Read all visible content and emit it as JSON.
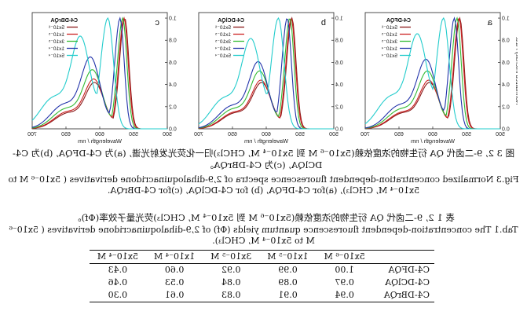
{
  "figure": {
    "y_axis_title": "Normalized Intensity / a.u.",
    "x_axis_title": "Wavelength / nm",
    "x_ticks": [
      "500",
      "550",
      "600",
      "650",
      "700"
    ],
    "y_ticks": [
      "0.0",
      "0.2",
      "0.4",
      "0.6",
      "0.8",
      "1.0"
    ]
  },
  "chart_data": [
    {
      "type": "line",
      "panel_letter": "a",
      "legend_title": "C4-DFQA",
      "xlabel": "Wavelength / nm",
      "ylabel": "Normalized Intensity / a.u.",
      "xlim": [
        500,
        700
      ],
      "ylim": [
        0,
        1.05
      ],
      "grid": false,
      "legend_placement": "top-right",
      "series": [
        {
          "name": "5x10⁻⁶",
          "color": "#8b1a1a",
          "peak_x": 560,
          "shoulder_x": 604,
          "shoulder_y": 0.4
        },
        {
          "name": "1x10⁻⁵",
          "color": "#cc2222",
          "peak_x": 561,
          "shoulder_x": 605,
          "shoulder_y": 0.42
        },
        {
          "name": "3x10⁻⁵",
          "color": "#33bb33",
          "peak_x": 564,
          "shoulder_x": 607,
          "shoulder_y": 0.5
        },
        {
          "name": "1x10⁻⁴",
          "color": "#2233aa",
          "peak_x": 568,
          "shoulder_x": 609,
          "shoulder_y": 0.6
        },
        {
          "name": "5x10⁻⁴",
          "color": "#22cccc",
          "peak_x": 584,
          "shoulder_x": 622,
          "shoulder_y": 0.82
        }
      ]
    },
    {
      "type": "line",
      "panel_letter": "b",
      "legend_title": "C4-DClQA",
      "xlabel": "Wavelength / nm",
      "ylabel": "Normalized Intensity / a.u.",
      "xlim": [
        500,
        700
      ],
      "ylim": [
        0,
        1.05
      ],
      "grid": false,
      "legend_placement": "top-right",
      "series": [
        {
          "name": "5x10⁻⁶",
          "color": "#8b1a1a",
          "peak_x": 562,
          "shoulder_x": 606,
          "shoulder_y": 0.4
        },
        {
          "name": "1x10⁻⁵",
          "color": "#cc2222",
          "peak_x": 563,
          "shoulder_x": 607,
          "shoulder_y": 0.42
        },
        {
          "name": "3x10⁻⁵",
          "color": "#33bb33",
          "peak_x": 565,
          "shoulder_x": 609,
          "shoulder_y": 0.5
        },
        {
          "name": "1x10⁻⁴",
          "color": "#2233aa",
          "peak_x": 569,
          "shoulder_x": 611,
          "shoulder_y": 0.58
        },
        {
          "name": "5x10⁻⁴",
          "color": "#22cccc",
          "peak_x": 582,
          "shoulder_x": 622,
          "shoulder_y": 0.78
        }
      ]
    },
    {
      "type": "line",
      "panel_letter": "c",
      "legend_title": "C4-DBrQA",
      "xlabel": "Wavelength / nm",
      "ylabel": "Normalized Intensity / a.u.",
      "xlim": [
        500,
        700
      ],
      "ylim": [
        0,
        1.05
      ],
      "grid": false,
      "legend_placement": "top-right",
      "series": [
        {
          "name": "5x10⁻⁶",
          "color": "#8b1a1a",
          "peak_x": 563,
          "shoulder_x": 607,
          "shoulder_y": 0.4
        },
        {
          "name": "1x10⁻⁵",
          "color": "#cc2222",
          "peak_x": 564,
          "shoulder_x": 608,
          "shoulder_y": 0.43
        },
        {
          "name": "3x10⁻⁵",
          "color": "#33bb33",
          "peak_x": 566,
          "shoulder_x": 610,
          "shoulder_y": 0.51
        },
        {
          "name": "1x10⁻⁴",
          "color": "#2233aa",
          "peak_x": 570,
          "shoulder_x": 613,
          "shoulder_y": 0.62
        },
        {
          "name": "5x10⁻⁴",
          "color": "#22cccc",
          "peak_x": 588,
          "shoulder_x": 628,
          "shoulder_y": 0.8
        }
      ]
    }
  ],
  "caption": {
    "cn": "图 3 2, 9-二卤代 QA 衍生物的浓度依赖(5x10⁻⁶ M 到 5x10⁻⁴ M, CHCl₃)归一化荧光发射光谱, (a)为 C4-DFQA, (b)为 C4-DClQA, (c)为 C4-DBrQA。",
    "en": "Fig.3 Normalized concentration-dependent fluorescence spectra of 2,9-dihaloquinacridone derivatives ( 5x10⁻⁶ M to 5x10⁻⁴ M, CHCl₃), (a)for C4-DFQA, (b) for C4-DClQA, (c)for C4-DBrQA."
  },
  "table": {
    "title_cn": "表 1 2, 9-二卤代 QA 衍生物的浓度依赖(5x10⁻⁶ M 到 5x10⁻⁴ M, CHCl₃)荧光量子效率(Φf)。",
    "title_en": "Tab.1 The concentration-dependent fluorescence quantum yields (Φf) of 2,9-dihaloquinacridone derivatives ( 5x10⁻⁶ M to 5x10⁻⁴ M, CHCl₃).",
    "headers": [
      "",
      "5x10⁻⁶ M",
      "1x10⁻⁵ M",
      "3x10⁻⁵ M",
      "1x10⁻⁴ M",
      "5x10⁻⁴ M"
    ],
    "rows": [
      [
        "C4-DFQA",
        "1.00",
        "0.99",
        "0.92",
        "0.60",
        "0.43"
      ],
      [
        "C4-DClQA",
        "0.97",
        "0.89",
        "0.84",
        "0.53",
        "0.46"
      ],
      [
        "C4-DBrQA",
        "0.94",
        "0.91",
        "0.83",
        "0.61",
        "0.30"
      ]
    ]
  }
}
